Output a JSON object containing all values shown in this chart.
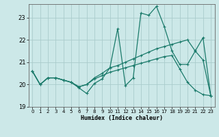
{
  "xlabel": "Humidex (Indice chaleur)",
  "background_color": "#cce8e8",
  "grid_color": "#aacccc",
  "line_color": "#1a7a6a",
  "xlim": [
    -0.5,
    23.5
  ],
  "ylim": [
    19.0,
    23.6
  ],
  "yticks": [
    19,
    20,
    21,
    22,
    23
  ],
  "xticks": [
    0,
    1,
    2,
    3,
    4,
    5,
    6,
    7,
    8,
    9,
    10,
    11,
    12,
    13,
    14,
    15,
    16,
    17,
    18,
    19,
    20,
    21,
    22,
    23
  ],
  "line1_x": [
    0,
    1,
    2,
    3,
    4,
    5,
    6,
    7,
    8,
    9,
    10,
    11,
    12,
    13,
    14,
    15,
    16,
    17,
    18,
    19,
    20,
    21,
    22,
    23
  ],
  "line1_y": [
    20.6,
    20.0,
    20.3,
    20.3,
    20.2,
    20.1,
    19.85,
    19.6,
    20.05,
    20.25,
    20.75,
    22.5,
    19.95,
    20.3,
    23.2,
    23.1,
    23.5,
    22.6,
    21.5,
    20.9,
    20.9,
    21.5,
    21.1,
    19.5
  ],
  "line2_x": [
    0,
    1,
    2,
    3,
    4,
    5,
    6,
    7,
    8,
    9,
    10,
    11,
    12,
    13,
    14,
    15,
    16,
    17,
    18,
    19,
    20,
    21,
    22,
    23
  ],
  "line2_y": [
    20.6,
    20.0,
    20.3,
    20.3,
    20.2,
    20.1,
    19.9,
    20.0,
    20.3,
    20.5,
    20.75,
    20.85,
    21.0,
    21.15,
    21.3,
    21.45,
    21.6,
    21.7,
    21.8,
    21.9,
    22.0,
    21.5,
    22.1,
    19.5
  ],
  "line3_x": [
    0,
    1,
    2,
    3,
    4,
    5,
    6,
    7,
    8,
    9,
    10,
    11,
    12,
    13,
    14,
    15,
    16,
    17,
    18,
    19,
    20,
    21,
    22,
    23
  ],
  "line3_y": [
    20.6,
    20.0,
    20.3,
    20.3,
    20.2,
    20.1,
    19.9,
    20.0,
    20.25,
    20.4,
    20.55,
    20.65,
    20.75,
    20.85,
    20.95,
    21.05,
    21.15,
    21.25,
    21.3,
    20.7,
    20.1,
    19.75,
    19.55,
    19.5
  ]
}
